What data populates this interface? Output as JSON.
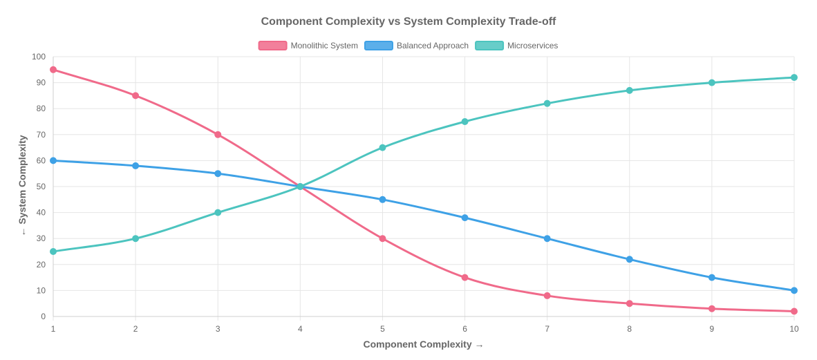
{
  "chart_data": {
    "type": "line",
    "title": "Component Complexity vs System Complexity Trade-off",
    "xlabel": "Component Complexity →",
    "ylabel": "← System Complexity",
    "x": [
      1,
      2,
      3,
      4,
      5,
      6,
      7,
      8,
      9,
      10
    ],
    "xlim": [
      1,
      10
    ],
    "ylim": [
      0,
      100
    ],
    "yticks": [
      0,
      10,
      20,
      30,
      40,
      50,
      60,
      70,
      80,
      90,
      100
    ],
    "grid": true,
    "legend_position": "top",
    "series": [
      {
        "name": "Monolithic System",
        "color": "#f06a8a",
        "values": [
          95,
          85,
          70,
          50,
          30,
          15,
          8,
          5,
          3,
          2
        ]
      },
      {
        "name": "Balanced Approach",
        "color": "#3ea1e6",
        "values": [
          60,
          58,
          55,
          50,
          45,
          38,
          30,
          22,
          15,
          10
        ]
      },
      {
        "name": "Microservices",
        "color": "#4cc4bf",
        "values": [
          25,
          30,
          40,
          50,
          65,
          75,
          82,
          87,
          90,
          92
        ]
      }
    ]
  }
}
